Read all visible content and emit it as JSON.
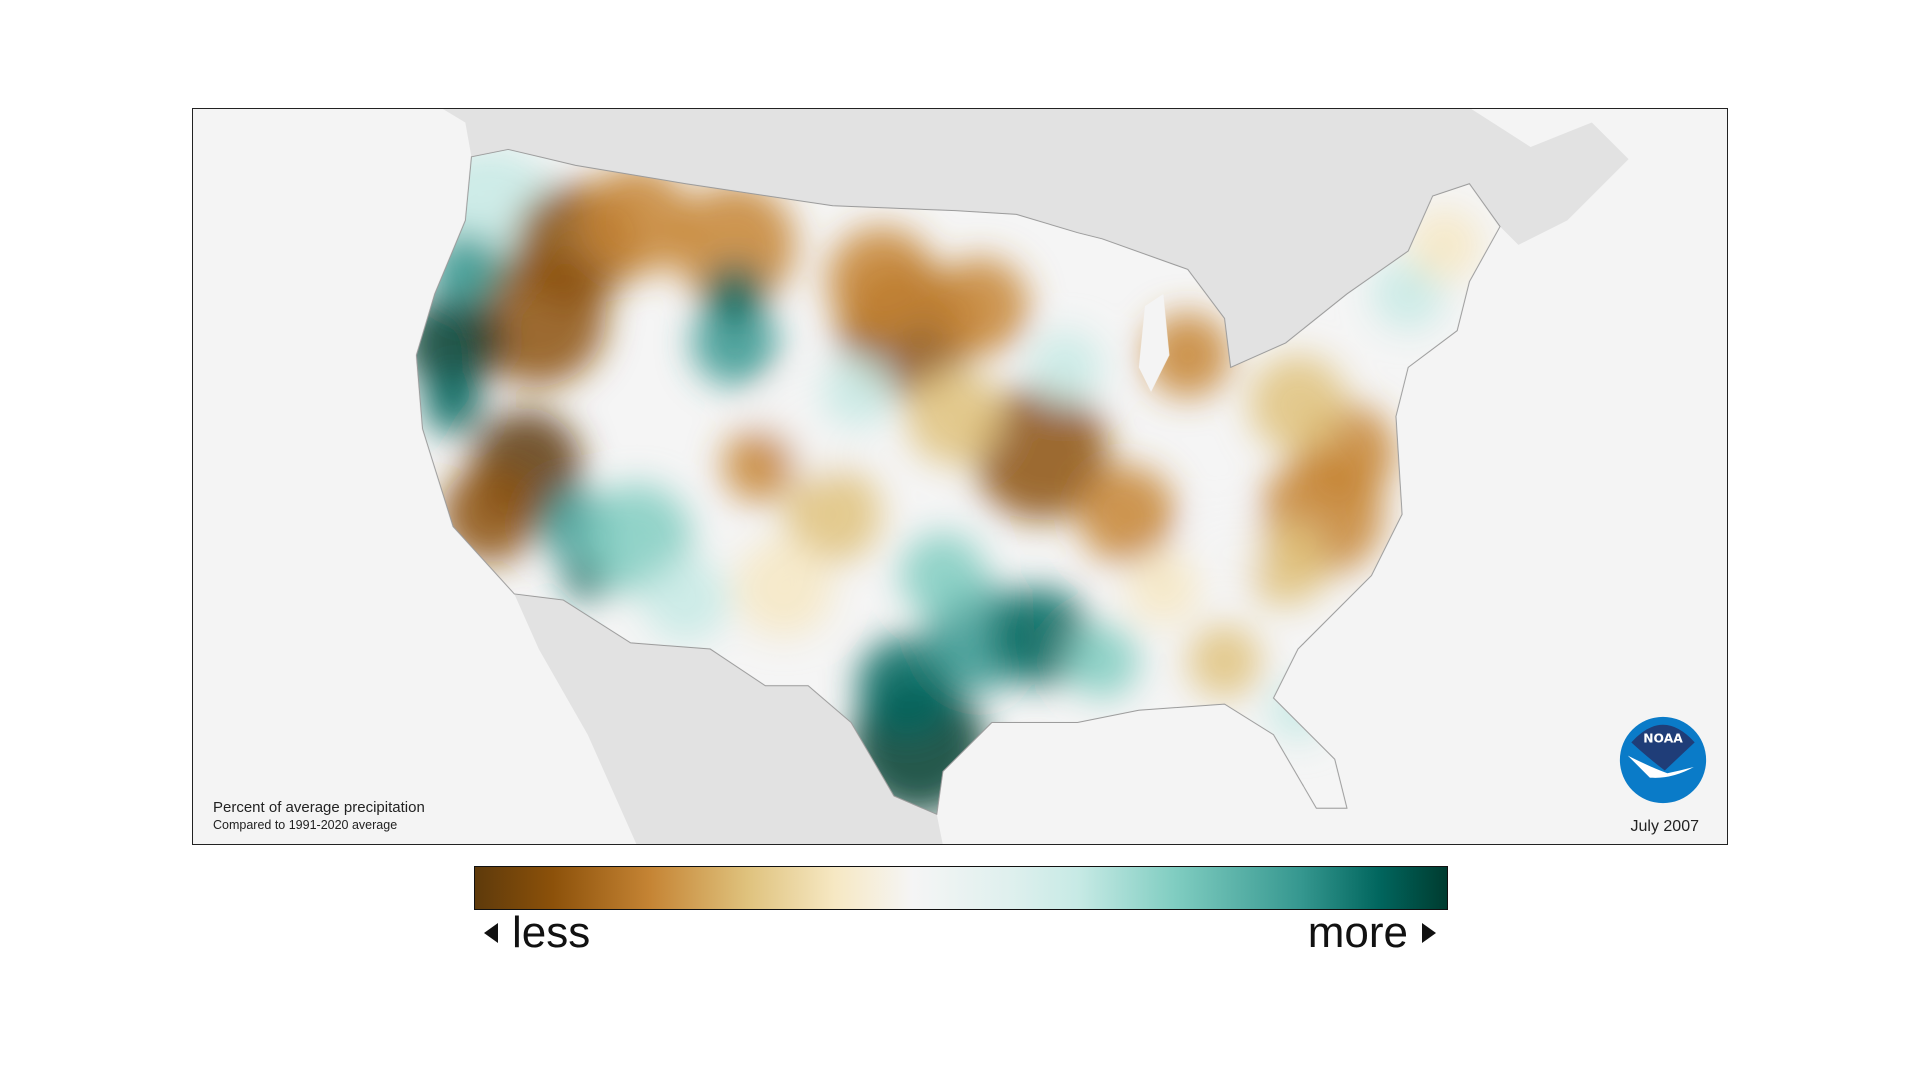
{
  "map": {
    "title": "Percent of average precipitation",
    "subtitle": "Compared to 1991-2020 average",
    "date": "July 2007",
    "logo_text": "NOAA",
    "region": "Contiguous United States"
  },
  "legend": {
    "less_label": "less",
    "more_label": "more",
    "colors": [
      "#5e3a0b",
      "#8c510a",
      "#c58434",
      "#dfc27d",
      "#f6e8c3",
      "#f5f5f5",
      "#c7eae5",
      "#80cdc1",
      "#35978f",
      "#01665e",
      "#003c30"
    ]
  }
}
